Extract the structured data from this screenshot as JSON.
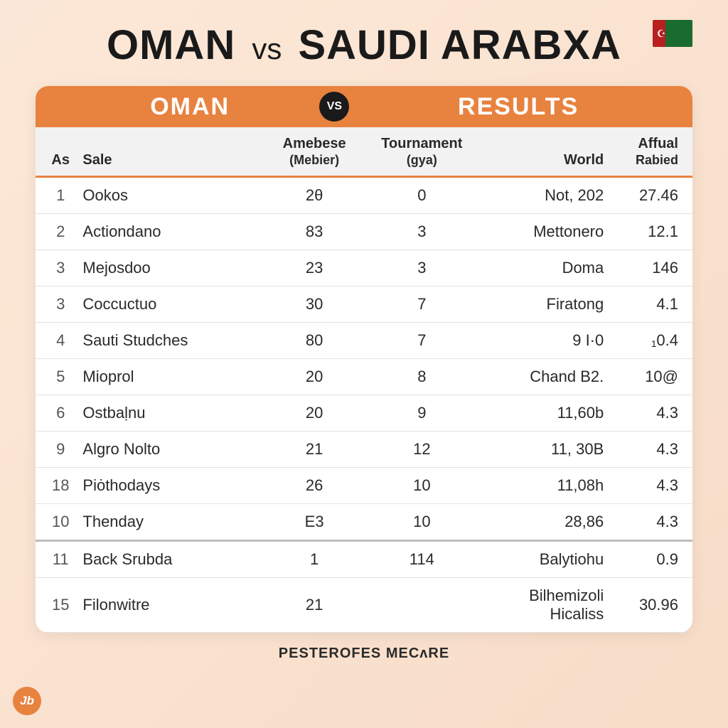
{
  "colors": {
    "background_start": "#fce8d8",
    "background_end": "#f8ddc8",
    "accent": "#e8823f",
    "text": "#2a2a2a",
    "header_bg": "#f2f2f2",
    "row_border": "#e2e2e2",
    "sep_border": "#bdbdbd",
    "badge_bg": "#1a1a1a",
    "white": "#ffffff",
    "flag_red": "#b82020",
    "flag_green": "#1a6b2e"
  },
  "typography": {
    "title_fontsize": 58,
    "header_fontsize": 34,
    "th_fontsize": 20,
    "td_fontsize": 22,
    "footer_fontsize": 20
  },
  "title": {
    "left": "OMAN",
    "vs": "vs",
    "right": "SAUDI ARABXA"
  },
  "orange_header": {
    "left": "OMAN",
    "badge": "VS",
    "right": "RESULTS"
  },
  "columns": {
    "as": "As",
    "sale": "Sale",
    "amebese_top": "Amebese",
    "amebese_sub": "(Mebier)",
    "tournament_top": "Tournament",
    "tournament_sub": "(gya)",
    "world": "World",
    "affual_top": "Affual",
    "affual_sub": "Rabied"
  },
  "rows": [
    {
      "as": "1",
      "sale": "Ookos",
      "ame": "2θ",
      "tour": "0",
      "world": "Not, 202",
      "aff": "27.46"
    },
    {
      "as": "2",
      "sale": "Actiondano",
      "ame": "83",
      "tour": "3",
      "world": "Mettonero",
      "aff": "12.1"
    },
    {
      "as": "3",
      "sale": "Mejosdoo",
      "ame": "23",
      "tour": "3",
      "world": "Doma",
      "aff": "146"
    },
    {
      "as": "3",
      "sale": "Coccuctuo",
      "ame": "30",
      "tour": "7",
      "world": "Firatong",
      "aff": "4.1"
    },
    {
      "as": "4",
      "sale": "Sauti Studches",
      "ame": "80",
      "tour": "7",
      "world": "9 I·0",
      "aff": "₁0.4"
    },
    {
      "as": "5",
      "sale": "Mioprol",
      "ame": "20",
      "tour": "8",
      "world": "Chand B2.",
      "aff": "10@"
    },
    {
      "as": "6",
      "sale": "Ostbaḷnu",
      "ame": "20",
      "tour": "9",
      "world": "11,60b",
      "aff": "4.3"
    },
    {
      "as": "9",
      "sale": "Algro Nolto",
      "ame": "21",
      "tour": "12",
      "world": "11, 30B",
      "aff": "4.3"
    },
    {
      "as": "18",
      "sale": "Piȯthodays",
      "ame": "26",
      "tour": "10",
      "world": "11,08h",
      "aff": "4.3"
    },
    {
      "as": "10",
      "sale": "Thenday",
      "ame": "E3",
      "tour": "10",
      "world": "28,86",
      "aff": "4.3"
    },
    {
      "as": "11",
      "sale": "Back Srubda",
      "ame": "1",
      "tour": "114",
      "world": "Balytiohu",
      "aff": "0.9"
    },
    {
      "as": "15",
      "sale": "Filonwitre",
      "ame": "21",
      "tour": "",
      "world": "Bilhemizoli Hicaliss",
      "aff": "30.96"
    }
  ],
  "separator_before_index": 10,
  "footer": "PESTEROFES MECᴧRE",
  "logo": "Jb"
}
